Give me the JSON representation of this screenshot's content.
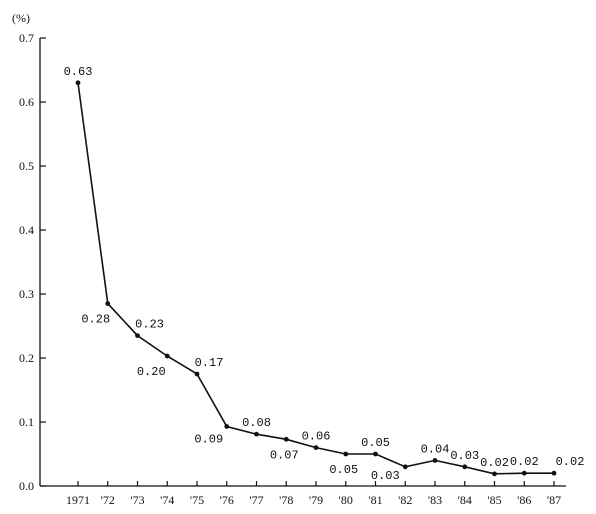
{
  "chart_data": {
    "type": "line",
    "title": "",
    "xlabel": "",
    "ylabel": "(%)",
    "ylim": [
      0,
      0.7
    ],
    "yticks": [
      "0.0",
      "0.1",
      "0.2",
      "0.3",
      "0.4",
      "0.5",
      "0.6",
      "0.7"
    ],
    "grid": false,
    "legend": "none",
    "categories": [
      "1971",
      "'72",
      "'73",
      "'74",
      "'75",
      "'76",
      "'77",
      "'78",
      "'79",
      "'80",
      "'81",
      "'82",
      "'83",
      "'84",
      "'85",
      "'86",
      "'87"
    ],
    "series": [
      {
        "values": [
          0.63,
          0.285,
          0.235,
          0.203,
          0.175,
          0.093,
          0.081,
          0.073,
          0.06,
          0.05,
          0.05,
          0.03,
          0.04,
          0.03,
          0.019,
          0.02,
          0.02
        ],
        "labels": [
          "0.63",
          "0.28",
          "0.23",
          "0.20",
          "0.17",
          "0.09",
          "0.08",
          "0.07",
          "0.06",
          "0.05",
          "0.05",
          "0.03",
          "0.04",
          "0.03",
          "0.02",
          "0.02",
          "0.02"
        ]
      }
    ],
    "colors": {
      "line": "#111111"
    }
  }
}
